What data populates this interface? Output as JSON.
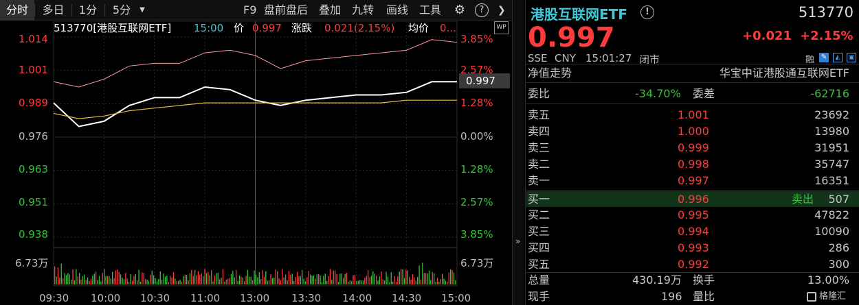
{
  "toolbar": {
    "tabs": [
      "分时",
      "多日",
      "1分",
      "5分"
    ],
    "dropdown_icon": "triangle-down-icon",
    "tools": [
      "F9",
      "盘前盘后",
      "叠加",
      "九转",
      "画线",
      "工具"
    ],
    "settings_icon": "gear-icon",
    "help_icon": "question-icon",
    "collapse_icon": "chevron-right-icon"
  },
  "chart": {
    "info_code": "513770[港股互联网ETF]",
    "info_time": "15:00",
    "info_price_label": "价",
    "info_price": "0.997",
    "info_change_label": "涨跌",
    "info_change": "0.021(2.15%)",
    "info_avg_label": "均价",
    "info_avg": "0...",
    "wp_badge": "WP",
    "price_ticks": [
      "1.014",
      "1.001",
      "0.989",
      "0.976",
      "0.963",
      "0.951",
      "0.938"
    ],
    "pct_ticks": [
      "3.85%",
      "2.57%",
      "1.28%",
      "0.00%",
      "1.28%",
      "2.57%",
      "3.85%"
    ],
    "price_tag": "0.997",
    "volume_label_left": "6.73万",
    "volume_label_right": "6.73万",
    "time_ticks": [
      "09:30",
      "10:00",
      "10:30",
      "11:00",
      "13:00",
      "13:30",
      "14:00",
      "14:30",
      "15:00"
    ],
    "colors": {
      "price_line": "#ffffff",
      "avg_line": "#e8c048",
      "ref_line": "#ff9a9a",
      "up": "#ff3b3b",
      "down": "#36c236",
      "grid": "#2a2a2a"
    }
  },
  "chart_data": {
    "type": "line",
    "title": "513770[港股互联网ETF]",
    "xlabel": "",
    "ylabel": "",
    "ylim": [
      0.938,
      1.014
    ],
    "prev_close": 0.976,
    "x": [
      "09:30",
      "09:45",
      "10:00",
      "10:15",
      "10:30",
      "10:45",
      "11:00",
      "11:15",
      "11:30",
      "13:15",
      "13:30",
      "13:45",
      "14:00",
      "14:15",
      "14:30",
      "14:45",
      "15:00"
    ],
    "series": [
      {
        "values": [
          0.989,
          0.98,
          0.982,
          0.988,
          0.991,
          0.991,
          0.995,
          0.994,
          0.99,
          0.988,
          0.99,
          0.991,
          0.992,
          0.992,
          0.993,
          0.997,
          0.997
        ]
      },
      {
        "values": [
          0.985,
          0.983,
          0.984,
          0.986,
          0.987,
          0.988,
          0.989,
          0.989,
          0.989,
          0.989,
          0.989,
          0.989,
          0.989,
          0.989,
          0.99,
          0.99,
          0.99
        ]
      },
      {
        "values": [
          0.997,
          0.995,
          0.998,
          1.003,
          1.004,
          1.004,
          1.008,
          1.009,
          1.007,
          1.002,
          1.005,
          1.006,
          1.007,
          1.008,
          1.009,
          1.013,
          1.012
        ]
      }
    ],
    "volume": {
      "max": "6.73万",
      "up_bars_share": 0.5
    }
  },
  "quote": {
    "name": "港股互联网ETF",
    "info_icon": "info-icon",
    "code": "513770",
    "price": "0.997",
    "change": "+0.021",
    "change_pct": "+2.15%",
    "exchange": "SSE",
    "currency": "CNY",
    "time": "15:01:27",
    "status": "闭市",
    "margin_badge": "融",
    "nav_label": "净值走势",
    "index_name": "华宝中证港股通互联网ETF",
    "weibi_label": "委比",
    "weibi": "-34.70%",
    "weicha_label": "委差",
    "weicha": "-62716"
  },
  "orderbook": {
    "asks": [
      {
        "label": "卖五",
        "price": "1.001",
        "vol": "23692"
      },
      {
        "label": "卖四",
        "price": "1.000",
        "vol": "13980"
      },
      {
        "label": "卖三",
        "price": "0.999",
        "vol": "31951"
      },
      {
        "label": "卖二",
        "price": "0.998",
        "vol": "35747"
      },
      {
        "label": "卖一",
        "price": "0.997",
        "vol": "16351"
      }
    ],
    "bids": [
      {
        "label": "买一",
        "price": "0.996",
        "tag": "卖出",
        "vol": "507"
      },
      {
        "label": "买二",
        "price": "0.995",
        "tag": "",
        "vol": "47822"
      },
      {
        "label": "买三",
        "price": "0.994",
        "tag": "",
        "vol": "10090"
      },
      {
        "label": "买四",
        "price": "0.993",
        "tag": "",
        "vol": "286"
      },
      {
        "label": "买五",
        "price": "0.992",
        "tag": "",
        "vol": "300"
      }
    ]
  },
  "stats": {
    "volume_label": "总量",
    "volume": "430.19万",
    "turnover_label": "换手",
    "turnover": "13.00%",
    "current_label": "现手",
    "current": "196",
    "ratio_label": "量比"
  },
  "watermark": "格隆汇"
}
